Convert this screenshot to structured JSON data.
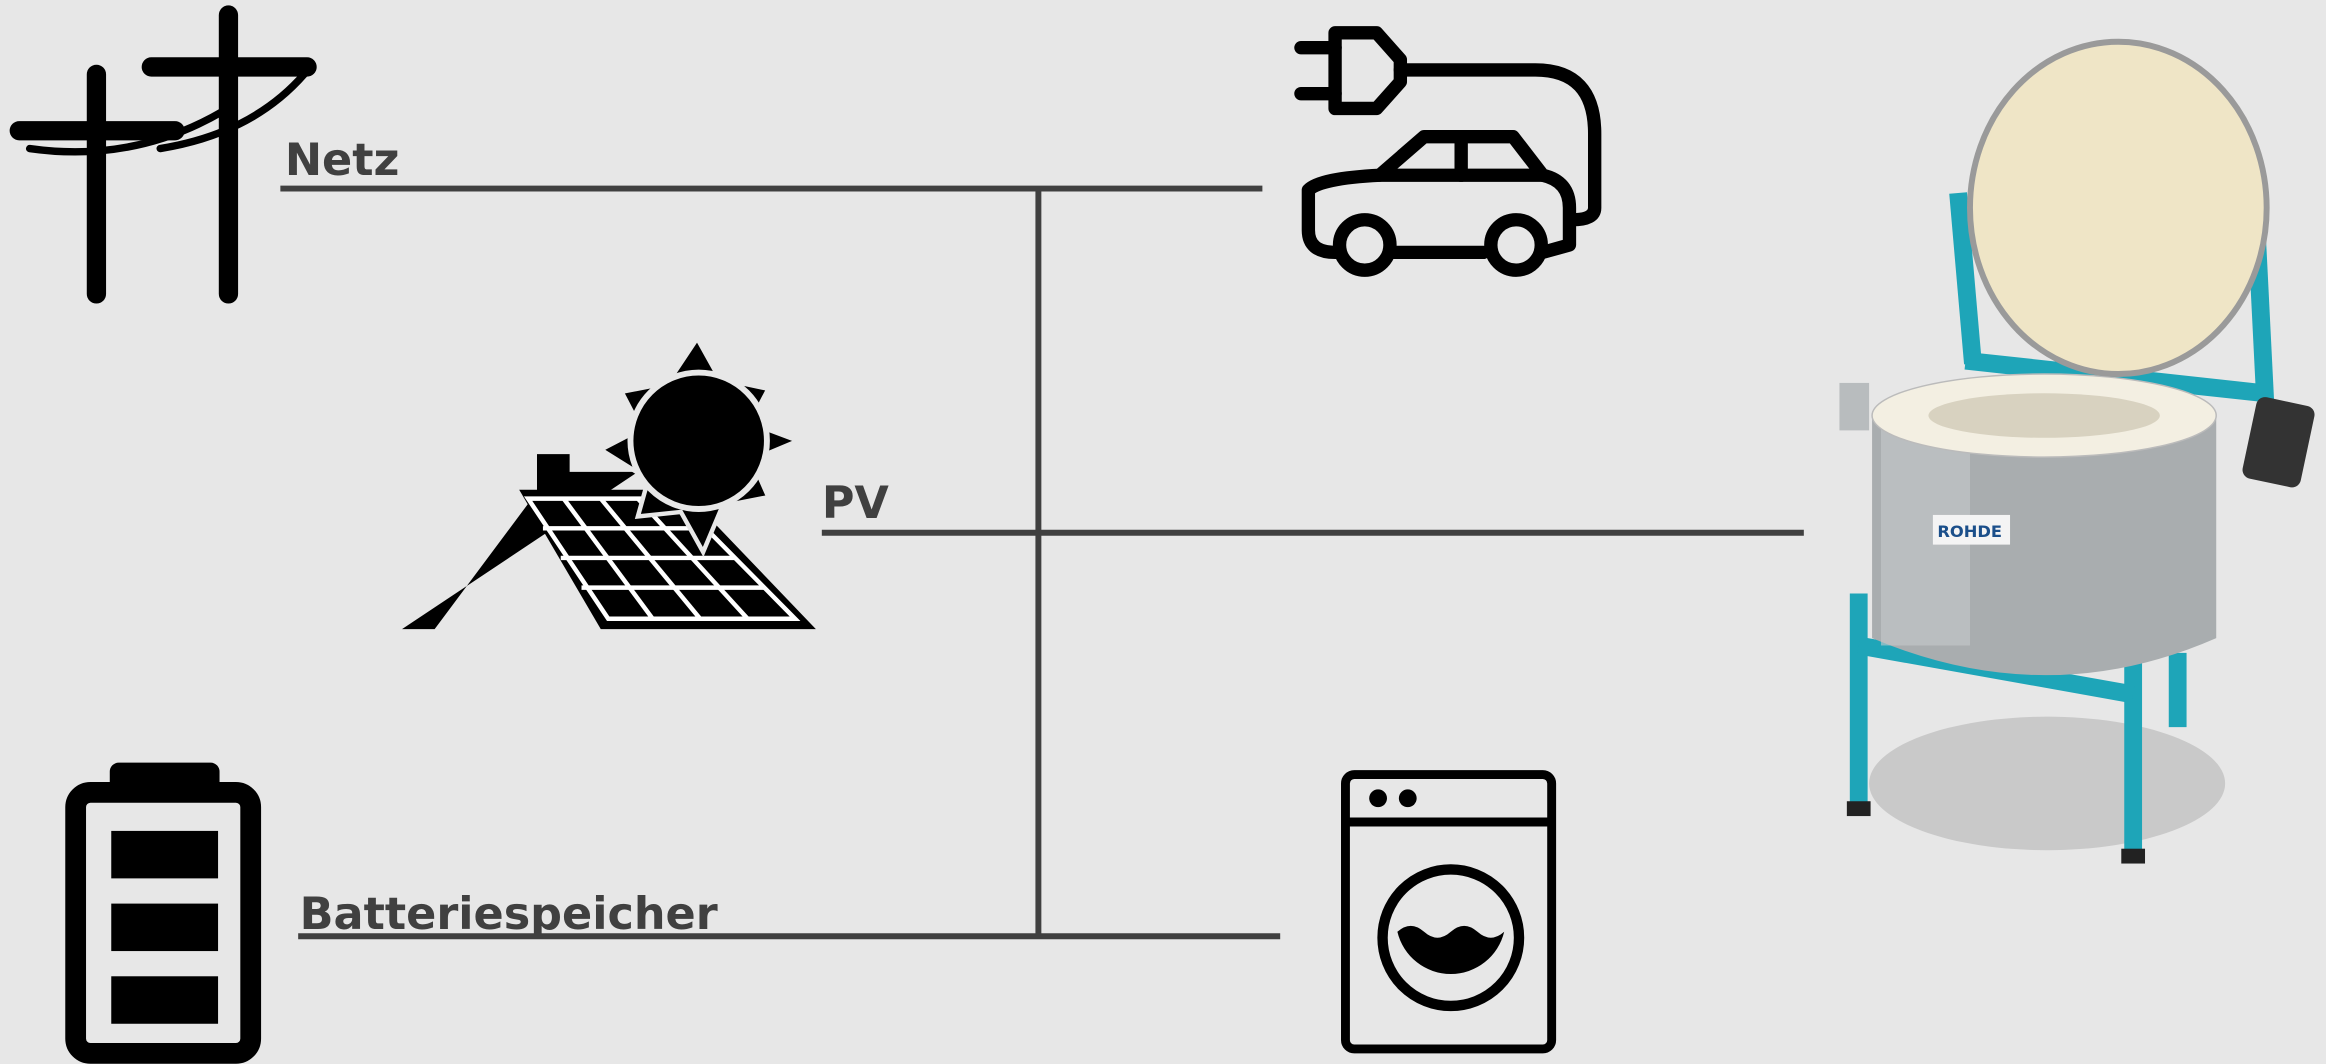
{
  "labels": {
    "grid": "Netz",
    "pv": "PV",
    "battery": "Batteriespeicher"
  },
  "kiln": {
    "brand": "ROHDE"
  }
}
